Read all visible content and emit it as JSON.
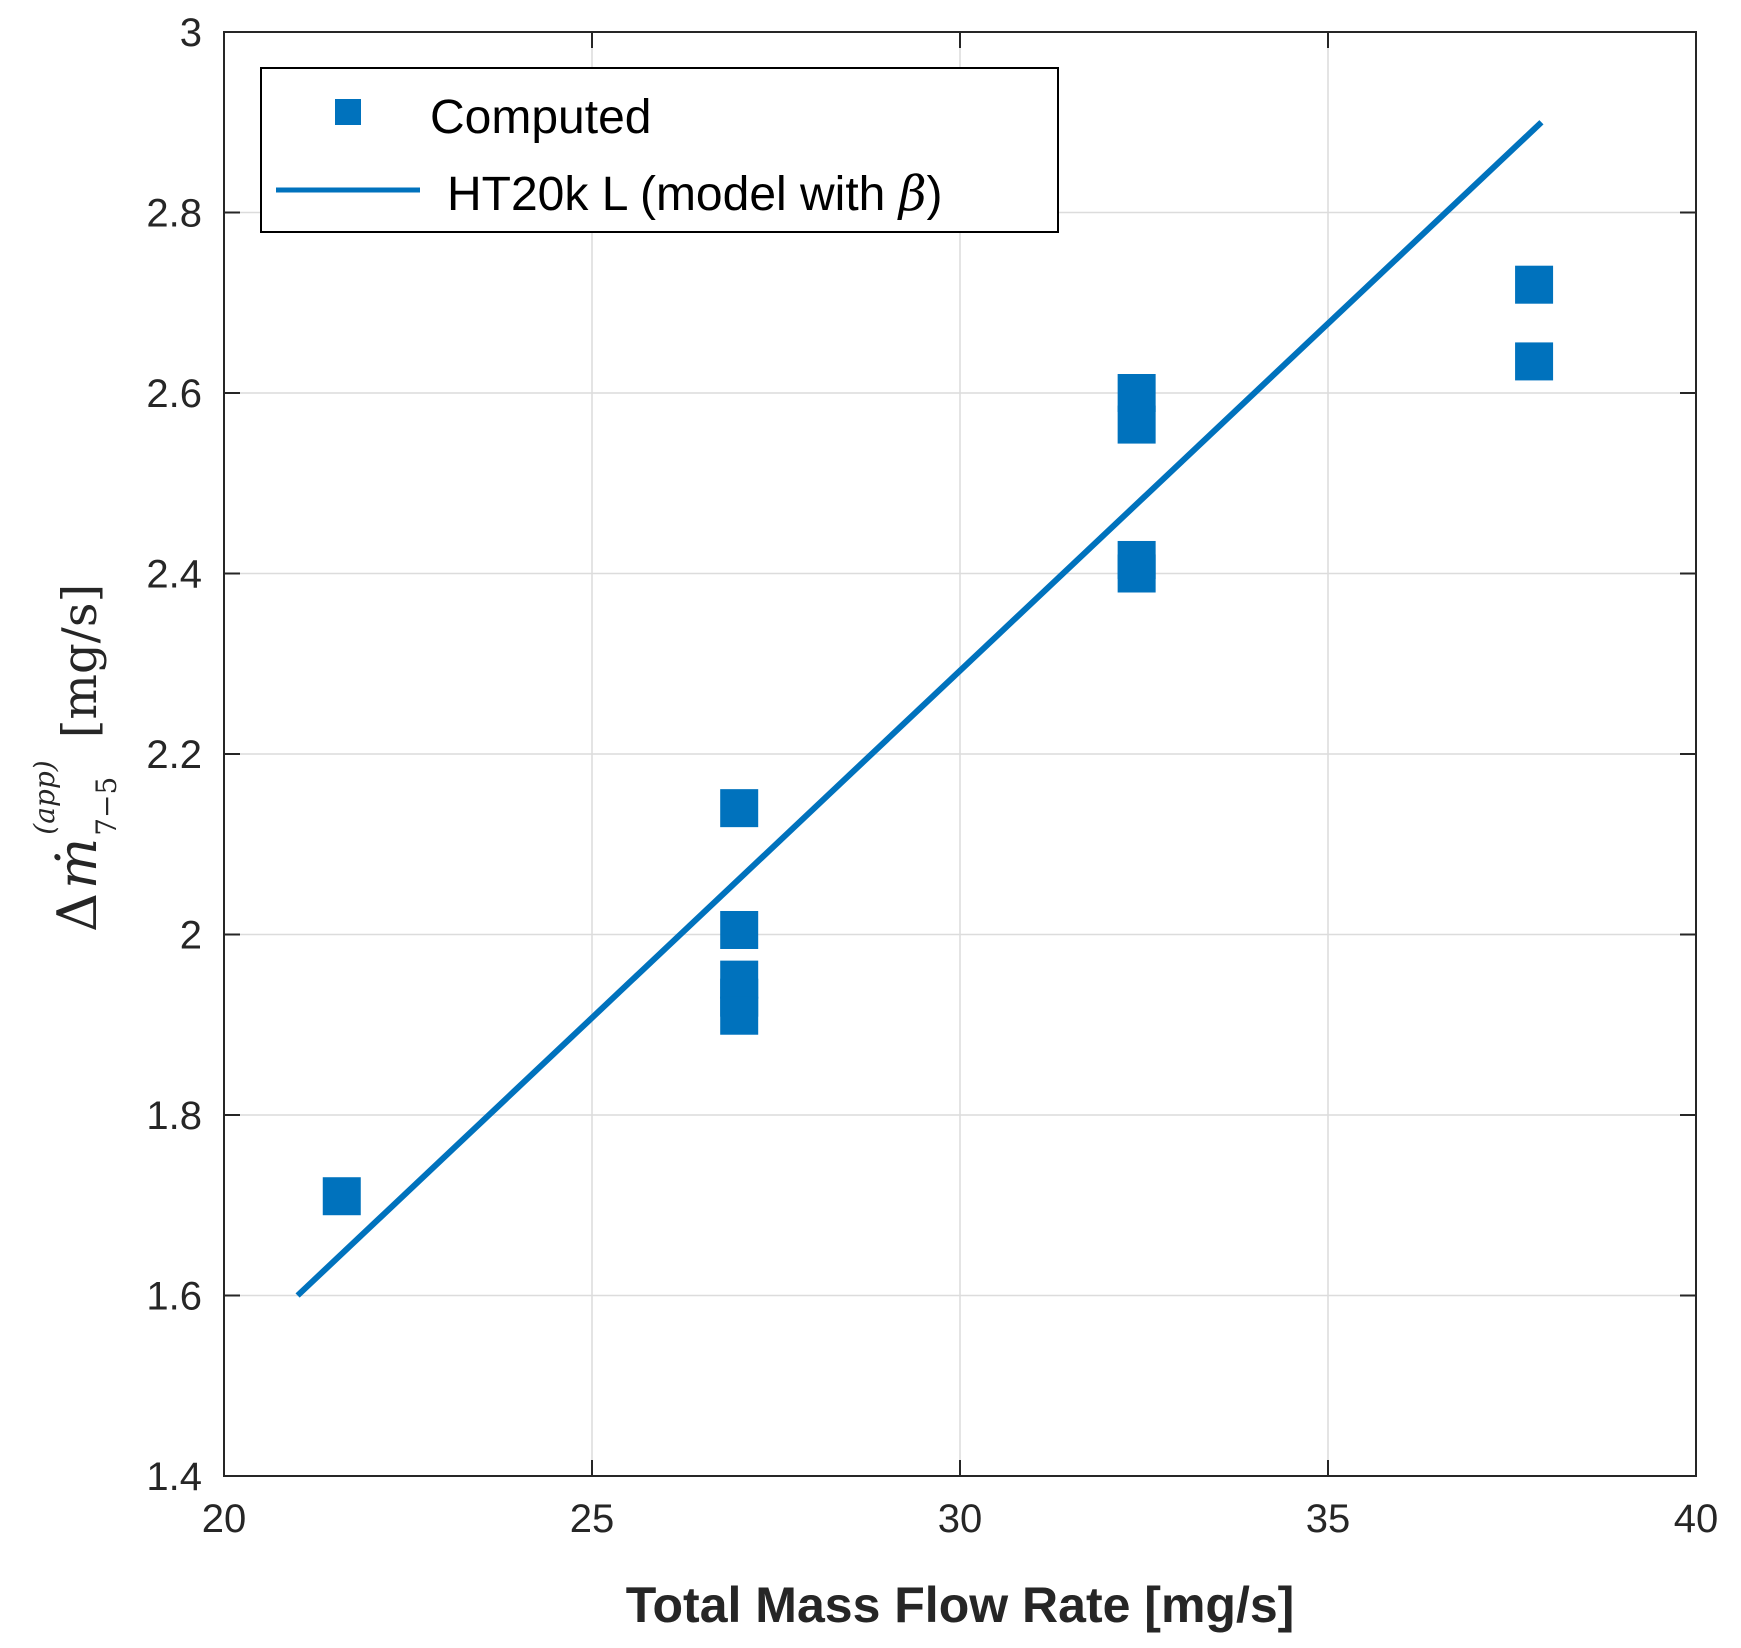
{
  "chart_data": {
    "type": "scatter",
    "title": "",
    "xlabel": "Total Mass Flow Rate [mg/s]",
    "ylabel": {
      "delta": "Δ",
      "symbol": "ṁ",
      "superscript": "(app)",
      "subscript": "7−5",
      "units": "[mg/s]"
    },
    "xlim": [
      20,
      40
    ],
    "ylim": [
      1.4,
      3.0
    ],
    "xticks": [
      20,
      25,
      30,
      35,
      40
    ],
    "yticks": [
      1.4,
      1.6,
      1.8,
      2.0,
      2.2,
      2.4,
      2.6,
      2.8,
      3.0
    ],
    "xtick_labels": [
      "20",
      "25",
      "30",
      "35",
      "40"
    ],
    "ytick_labels": [
      "1.4",
      "1.6",
      "1.8",
      "2",
      "2.2",
      "2.4",
      "2.6",
      "2.8",
      "3"
    ],
    "grid": true,
    "legend_position": "top-left",
    "series": [
      {
        "name": "Computed",
        "type": "scatter",
        "marker": "square",
        "color": "#0072BD",
        "x": [
          21.6,
          27.0,
          27.0,
          27.0,
          27.0,
          27.0,
          32.4,
          32.4,
          32.4,
          32.4,
          37.8,
          37.8
        ],
        "y": [
          1.71,
          2.14,
          2.005,
          1.95,
          1.93,
          1.91,
          2.6,
          2.565,
          2.415,
          2.4,
          2.72,
          2.635
        ]
      },
      {
        "name": "HT20k L (model with ",
        "name_symbol": "β",
        "name_suffix": ")",
        "type": "line",
        "color": "#0072BD",
        "x": [
          21.0,
          37.9
        ],
        "y": [
          1.6,
          2.9
        ]
      }
    ]
  }
}
